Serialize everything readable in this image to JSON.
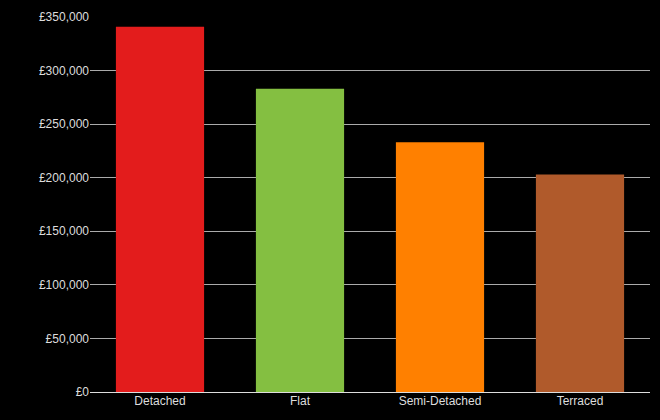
{
  "chart_data": {
    "type": "bar",
    "categories": [
      "Detached",
      "Flat",
      "Semi-Detached",
      "Terraced"
    ],
    "values": [
      341000,
      283000,
      233000,
      203000
    ],
    "colors": [
      "#e31c1c",
      "#84bf41",
      "#ff8000",
      "#b05a2b"
    ],
    "ylim": [
      0,
      350000
    ],
    "yticks": [
      {
        "value": 0,
        "label": "£0"
      },
      {
        "value": 50000,
        "label": "£50,000"
      },
      {
        "value": 100000,
        "label": "£100,000"
      },
      {
        "value": 150000,
        "label": "£150,000"
      },
      {
        "value": 200000,
        "label": "£200,000"
      },
      {
        "value": 250000,
        "label": "£250,000"
      },
      {
        "value": 300000,
        "label": "£300,000"
      },
      {
        "value": 350000,
        "label": "£350,000"
      }
    ],
    "grid": true
  }
}
